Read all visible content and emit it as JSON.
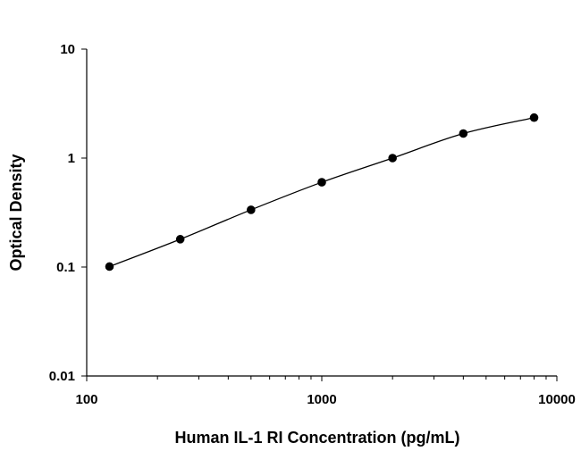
{
  "chart_data": {
    "type": "scatter",
    "title": "",
    "xlabel": "Human IL-1 RI Concentration (pg/mL)",
    "ylabel": "Optical Density",
    "x_scale": "log",
    "y_scale": "log",
    "xlim": [
      100,
      10000
    ],
    "ylim": [
      0.01,
      10
    ],
    "x_tick_labels": [
      "100",
      "1000",
      "10000"
    ],
    "y_tick_labels": [
      "0.01",
      "0.1",
      "1",
      "10"
    ],
    "grid": false,
    "legend": "none",
    "series": [
      {
        "x": [
          125,
          250,
          500,
          1000,
          2000,
          4000,
          8000
        ],
        "y": [
          0.101,
          0.18,
          0.335,
          0.6,
          1.0,
          1.68,
          2.35
        ]
      }
    ],
    "fit_curve": true,
    "colors": {
      "marker": "#000000",
      "line": "#000000"
    }
  }
}
